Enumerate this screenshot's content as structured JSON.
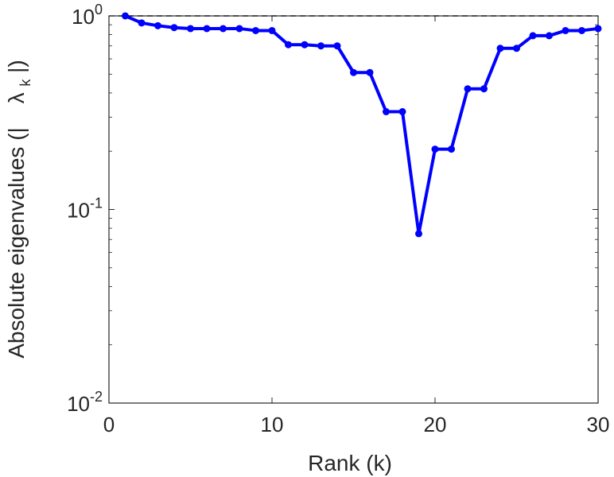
{
  "chart_data": {
    "type": "line",
    "xlabel": "Rank (k)",
    "ylabel": {
      "part1": "Absolute eigenvalues (|",
      "symbol": "λ",
      "subscript": "k",
      "part2": "|)"
    },
    "y_scale": "log",
    "xlim": [
      0,
      30
    ],
    "ylim": [
      0.01,
      1
    ],
    "x_ticks": [
      "0",
      "10",
      "20",
      "30"
    ],
    "y_ticks": [
      {
        "base": "10",
        "exp": "0"
      },
      {
        "base": "10",
        "exp": "-1"
      },
      {
        "base": "10",
        "exp": "-2"
      }
    ],
    "reference_line": {
      "y": 1.0,
      "style": "dashed",
      "color": "#000000"
    },
    "grid": false,
    "series": [
      {
        "color": "#0000ff",
        "x": [
          1,
          2,
          3,
          4,
          5,
          6,
          7,
          8,
          9,
          10,
          11,
          12,
          13,
          14,
          15,
          16,
          17,
          18,
          19,
          20,
          21,
          22,
          23,
          24,
          25,
          26,
          27,
          28,
          29,
          30
        ],
        "y": [
          1.0,
          0.92,
          0.89,
          0.87,
          0.86,
          0.86,
          0.86,
          0.86,
          0.84,
          0.84,
          0.71,
          0.71,
          0.7,
          0.7,
          0.51,
          0.51,
          0.32,
          0.32,
          0.075,
          0.205,
          0.205,
          0.42,
          0.42,
          0.68,
          0.68,
          0.79,
          0.79,
          0.84,
          0.84,
          0.86
        ]
      }
    ]
  }
}
